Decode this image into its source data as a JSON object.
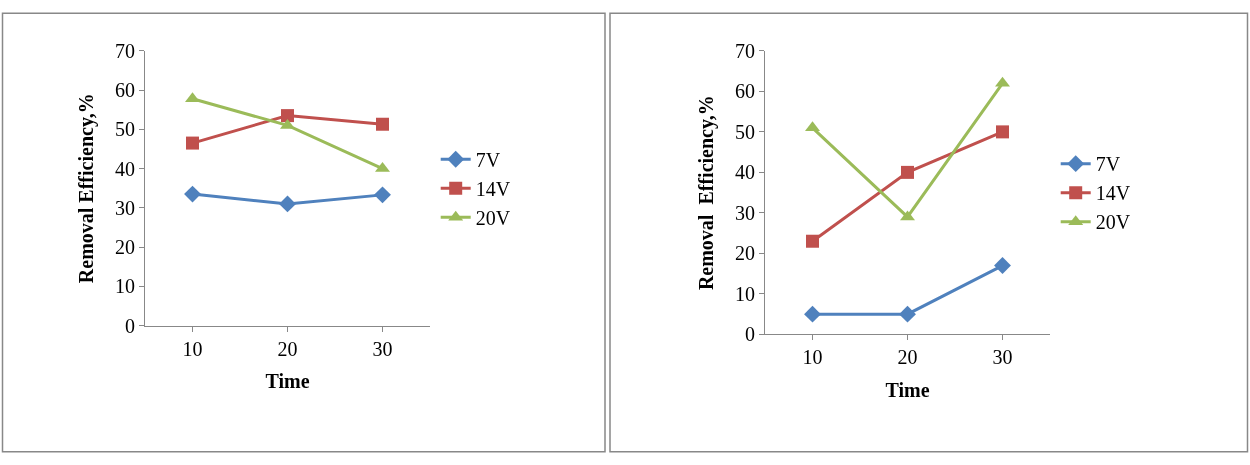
{
  "chart_data": [
    {
      "type": "line",
      "xlabel": "Time",
      "ylabel": "Removal Efficiency,%",
      "categories": [
        "10",
        "20",
        "30"
      ],
      "ylim": [
        0,
        70
      ],
      "yticks": [
        0,
        10,
        20,
        30,
        40,
        50,
        60,
        70
      ],
      "legend": "right",
      "series": [
        {
          "name": "7V",
          "color": "#4f81bd",
          "marker": "diamond",
          "values": [
            33.5,
            31,
            33.3
          ]
        },
        {
          "name": "14V",
          "color": "#c0504d",
          "marker": "square",
          "values": [
            46.5,
            53.5,
            51.3
          ]
        },
        {
          "name": "20V",
          "color": "#9bbb59",
          "marker": "triangle",
          "values": [
            57.8,
            51,
            40
          ]
        }
      ]
    },
    {
      "type": "line",
      "xlabel": "Time",
      "ylabel": "Removal  Efficiency,%",
      "categories": [
        "10",
        "20",
        "30"
      ],
      "ylim": [
        0,
        70
      ],
      "yticks": [
        0,
        10,
        20,
        30,
        40,
        50,
        60,
        70
      ],
      "legend": "right",
      "series": [
        {
          "name": "7V",
          "color": "#4f81bd",
          "marker": "diamond",
          "values": [
            5,
            5,
            17
          ]
        },
        {
          "name": "14V",
          "color": "#c0504d",
          "marker": "square",
          "values": [
            23,
            40,
            50
          ]
        },
        {
          "name": "20V",
          "color": "#9bbb59",
          "marker": "triangle",
          "values": [
            51,
            29,
            62
          ]
        }
      ]
    }
  ]
}
